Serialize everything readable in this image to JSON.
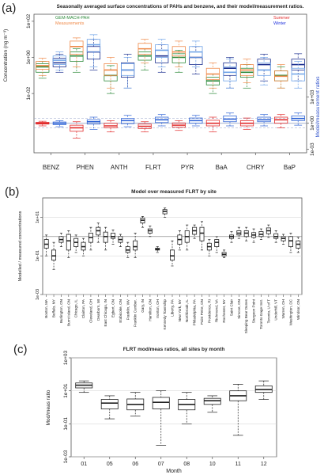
{
  "panel_labels": [
    "(a)",
    "(b)",
    "(c)"
  ],
  "colors": {
    "model_summer": "#2e8b3c",
    "meas_summer": "#ef8a4a",
    "model_winter": "#1c2f8f",
    "meas_winter": "#6fa3e8",
    "ratio_summer": "#e22b2b",
    "ratio_winter": "#2e63d6",
    "legend_summer": "#e22b2b",
    "legend_winter": "#2233dd",
    "ylabel_right": "#3355cc",
    "refline": "#9aa7c8"
  },
  "chart_data": [
    {
      "type": "box",
      "title": "Seasonally averaged surface concentrations of PAHs and benzene, and their model/measurement ratios.",
      "ylabel": "Concentration (ng m⁻³)",
      "ylabel_right": "Model/measurement ratios",
      "legend_left": [
        "GEM-MACH-PAH",
        "Measurements"
      ],
      "legend_right": [
        "Summer",
        "Winter"
      ],
      "categories": [
        "BENZ",
        "PHEN",
        "ANTH",
        "FLRT",
        "PYR",
        "BaA",
        "CHRY",
        "BaP"
      ],
      "top_axis": {
        "scale": "log",
        "ticks": [
          "1e-02",
          "1e+00",
          "1e+02"
        ],
        "ylim": [
          0.005,
          200
        ]
      },
      "bottom_axis": {
        "scale": "log",
        "ticks": [
          "1e-03",
          "1e+00",
          "1e+03"
        ],
        "ylim": [
          0.0005,
          5000
        ],
        "refline": 1
      },
      "conc_series": [
        {
          "name": "GEM-MACH-PAH summer",
          "boxes": [
            [
              0.07,
              0.15,
              0.3,
              0.45,
              0.6
            ],
            [
              0.15,
              0.6,
              1.2,
              2,
              3
            ],
            [
              0.01,
              0.05,
              0.1,
              0.2,
              0.35
            ],
            [
              0.2,
              0.7,
              1.2,
              2,
              3
            ],
            [
              0.15,
              0.5,
              1,
              1.6,
              2.5
            ],
            [
              0.01,
              0.03,
              0.05,
              0.08,
              0.12
            ],
            [
              0.02,
              0.08,
              0.15,
              0.25,
              0.4
            ],
            [
              0.02,
              0.05,
              0.1,
              0.18,
              0.3
            ]
          ]
        },
        {
          "name": "Measurements summer",
          "boxes": [
            [
              0.1,
              0.22,
              0.35,
              0.6,
              0.9
            ],
            [
              0.3,
              1.5,
              4,
              8,
              12
            ],
            [
              0.02,
              0.1,
              0.2,
              0.45,
              1
            ],
            [
              0.5,
              1.5,
              3,
              6,
              10
            ],
            [
              0.3,
              1.2,
              2,
              4,
              8
            ],
            [
              0.02,
              0.06,
              0.12,
              0.25,
              0.5
            ],
            [
              0.04,
              0.1,
              0.2,
              0.4,
              0.8
            ],
            [
              0.02,
              0.05,
              0.09,
              0.18,
              0.4
            ]
          ]
        },
        {
          "name": "GEM-MACH-PAH winter",
          "boxes": [
            [
              0.15,
              0.3,
              0.5,
              0.9,
              1.5
            ],
            [
              0.2,
              0.8,
              2,
              4,
              10
            ],
            [
              0.02,
              0.08,
              0.2,
              0.5,
              1.5
            ],
            [
              0.15,
              0.5,
              1.2,
              2.5,
              5
            ],
            [
              0.12,
              0.4,
              1,
              2,
              4
            ],
            [
              0.02,
              0.1,
              0.25,
              0.5,
              1
            ],
            [
              0.05,
              0.2,
              0.4,
              0.8,
              1.5
            ],
            [
              0.05,
              0.2,
              0.4,
              0.8,
              1.6
            ]
          ]
        },
        {
          "name": "Measurements winter",
          "boxes": [
            [
              0.2,
              0.4,
              0.7,
              1.2,
              2
            ],
            [
              0.3,
              2,
              5,
              10,
              18
            ],
            [
              0.02,
              0.1,
              0.2,
              0.45,
              1
            ],
            [
              0.3,
              1,
              2.5,
              5,
              10
            ],
            [
              0.3,
              1,
              2,
              4,
              8
            ],
            [
              0.02,
              0.05,
              0.15,
              0.3,
              0.8
            ],
            [
              0.03,
              0.1,
              0.2,
              0.5,
              1
            ],
            [
              0.02,
              0.05,
              0.12,
              0.25,
              0.6
            ]
          ]
        }
      ],
      "ratio_series": [
        {
          "name": "Summer",
          "boxes": [
            [
              0.5,
              0.8,
              1,
              1.3,
              1.7
            ],
            [
              0.02,
              0.12,
              0.3,
              0.6,
              1.5
            ],
            [
              0.1,
              0.3,
              0.5,
              1,
              2
            ],
            [
              0.1,
              0.25,
              0.45,
              0.8,
              1.5
            ],
            [
              0.15,
              0.35,
              0.6,
              1.1,
              2
            ],
            [
              0.1,
              0.5,
              1,
              2.2,
              5
            ],
            [
              0.2,
              0.5,
              1,
              2,
              4
            ],
            [
              0.3,
              1,
              2.5,
              5,
              10
            ]
          ]
        },
        {
          "name": "Winter",
          "boxes": [
            [
              0.4,
              0.7,
              1,
              1.4,
              2
            ],
            [
              0.2,
              0.8,
              1.5,
              2.5,
              5
            ],
            [
              0.4,
              0.9,
              2,
              3.5,
              8
            ],
            [
              0.5,
              1.2,
              2.5,
              5,
              10
            ],
            [
              0.5,
              1,
              2,
              4,
              8
            ],
            [
              0.5,
              1.5,
              3,
              7,
              15
            ],
            [
              0.5,
              1.5,
              2.5,
              5,
              10
            ],
            [
              0.6,
              2,
              3.5,
              7,
              15
            ]
          ]
        }
      ]
    },
    {
      "type": "box",
      "title": "Model over measured FLRT by site",
      "ylabel": "Modelled / measured concentrations",
      "scale": "log",
      "ylim": [
        0.001,
        100
      ],
      "yticks": [
        "1e-03",
        "1e-01",
        "1e+01"
      ],
      "refline": 1,
      "categories": [
        "Boston, MA",
        "Buffalo, NY",
        "Burlington, ON",
        "Burnt Island, ON",
        "Chicago, IL",
        "Clairton, PA",
        "Cleveland, OH",
        "Dearborn, MI",
        "East Chicago, IN",
        "Egbert, ON",
        "Etobicoke, ON",
        "Franklin, WV",
        "Franklin Cumber.",
        "Gary, IN",
        "Hamilton, ON",
        "Ironton, OH",
        "Kennedy Township",
        "Liberty, PA",
        "New York, NY",
        "Northbrook, IL",
        "Philadelphia, PA",
        "Point Petre, ON",
        "Providence, RI",
        "Richmond, VA",
        "Rochester, NY",
        "Saint Clair",
        "Simcoe, ON",
        "Sleeping Bear Dunes",
        "Sturgeon Point",
        "Toronto Gage Inst.",
        "Toronto, U of T",
        "Underhill, VT",
        "Warren, OH",
        "Washington, DC",
        "Windsor, ON"
      ],
      "boxes": [
        [
          0.1,
          0.25,
          0.4,
          0.7,
          1.2
        ],
        [
          0.02,
          0.06,
          0.1,
          0.2,
          0.5
        ],
        [
          0.3,
          0.5,
          0.7,
          1,
          1.5
        ],
        [
          0.08,
          0.2,
          0.6,
          1.3,
          2
        ],
        [
          0.15,
          0.3,
          0.5,
          0.8,
          1.2
        ],
        [
          0.1,
          0.2,
          0.3,
          0.5,
          0.8
        ],
        [
          0.2,
          0.5,
          0.9,
          1.5,
          3
        ],
        [
          0.5,
          1.2,
          2,
          3,
          5
        ],
        [
          0.2,
          0.5,
          1,
          1.7,
          3
        ],
        [
          0.4,
          0.8,
          1,
          1.5,
          2.2
        ],
        [
          0.3,
          0.5,
          0.7,
          1,
          1.3
        ],
        [
          0.08,
          0.15,
          0.2,
          0.3,
          0.5
        ],
        [
          0.08,
          0.2,
          0.3,
          0.6,
          1.5
        ],
        [
          3,
          5,
          7,
          9,
          11
        ],
        [
          1,
          1.5,
          2,
          2.5,
          3.5
        ],
        [
          0.15,
          0.2,
          0.22,
          0.25,
          0.3
        ],
        [
          10,
          15,
          20,
          25,
          30
        ],
        [
          0.03,
          0.06,
          0.1,
          0.2,
          0.6
        ],
        [
          0.2,
          0.4,
          0.7,
          1.2,
          2
        ],
        [
          0.2,
          0.5,
          1,
          2,
          4
        ],
        [
          0.8,
          1.3,
          2,
          3,
          4
        ],
        [
          0.2,
          0.6,
          1.5,
          3,
          6
        ],
        [
          0.1,
          0.2,
          0.3,
          0.45,
          0.7
        ],
        [
          0.15,
          0.3,
          0.5,
          0.7,
          1
        ],
        [
          0.08,
          0.1,
          0.12,
          0.15,
          0.2
        ],
        [
          0.5,
          0.8,
          1,
          1.2,
          1.8
        ],
        [
          0.8,
          1.2,
          1.5,
          2,
          3
        ],
        [
          0.6,
          1,
          1.5,
          2,
          3
        ],
        [
          0.5,
          0.9,
          1.2,
          1.6,
          2.5
        ],
        [
          0.7,
          1,
          1.3,
          1.8,
          2.5
        ],
        [
          0.9,
          1.4,
          2,
          2.8,
          4
        ],
        [
          0.5,
          0.8,
          1,
          1.4,
          2
        ],
        [
          0.4,
          0.6,
          0.8,
          1,
          1.3
        ],
        [
          0.15,
          0.3,
          0.6,
          1,
          1.5
        ],
        [
          0.15,
          0.25,
          0.4,
          0.6,
          0.9
        ]
      ]
    },
    {
      "type": "box",
      "title": "FLRT mod/meas ratios, all sites by month",
      "xlabel": "Month",
      "ylabel": "Mod/meas ratio",
      "scale": "log",
      "ylim": [
        0.001,
        1000
      ],
      "yticks": [
        "1e-03",
        "1e-01",
        "1e+01",
        "1e+03"
      ],
      "categories": [
        "01",
        "05",
        "06",
        "07",
        "08",
        "10",
        "11",
        "12"
      ],
      "boxes": [
        [
          8,
          15,
          22,
          30,
          40
        ],
        [
          0.2,
          0.8,
          1.8,
          3,
          5
        ],
        [
          0.3,
          0.7,
          1.5,
          3.2,
          8
        ],
        [
          0.005,
          0.8,
          2,
          4,
          10
        ],
        [
          0.1,
          0.7,
          1.5,
          3,
          8
        ],
        [
          0.5,
          1.5,
          2.5,
          3.5,
          5
        ],
        [
          0.02,
          2.5,
          5,
          10,
          25
        ],
        [
          3,
          8,
          12,
          20,
          40
        ]
      ]
    }
  ]
}
